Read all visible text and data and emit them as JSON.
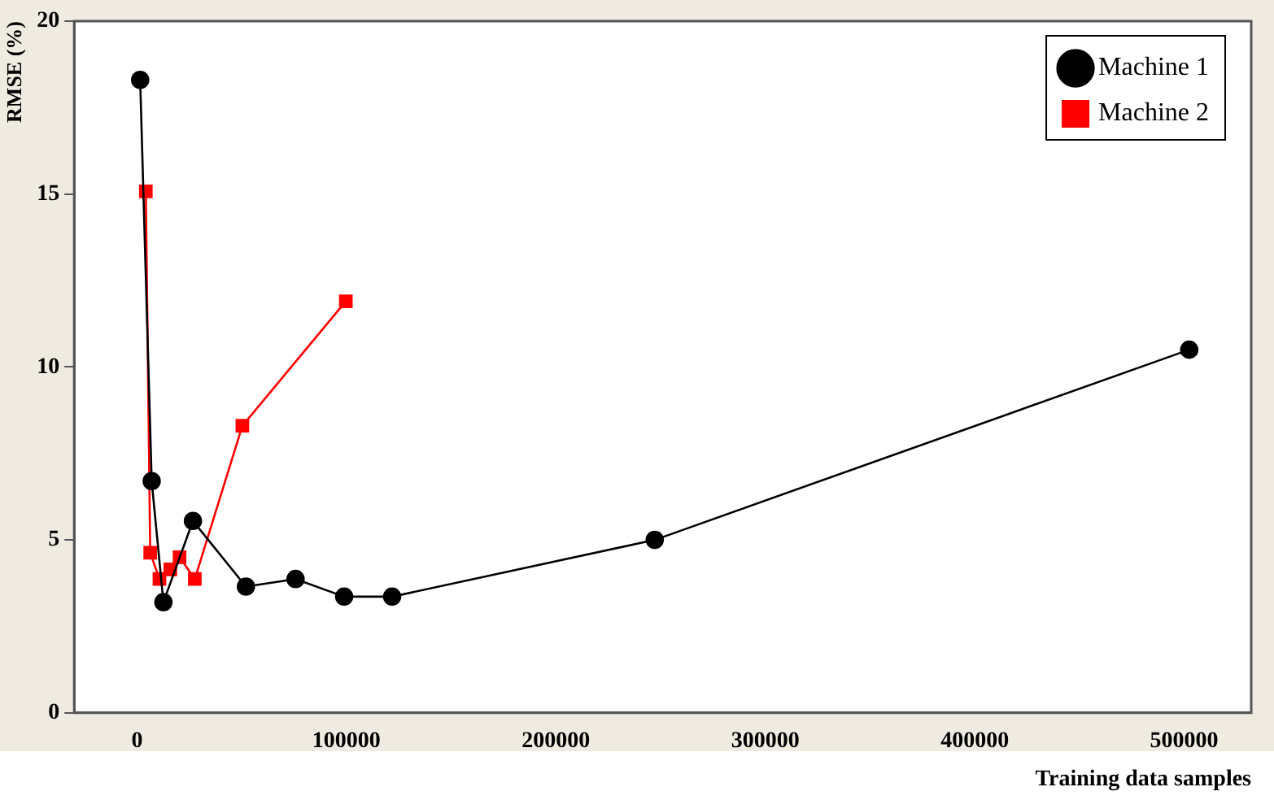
{
  "chart_data": {
    "type": "line",
    "xlabel": "Training data samples",
    "ylabel": "RMSE (%)",
    "xlim": [
      -30000,
      532000
    ],
    "xticks": [
      0,
      100000,
      200000,
      300000,
      400000,
      500000
    ],
    "ylim": [
      0,
      20
    ],
    "yticks": [
      0,
      5,
      10,
      15,
      20
    ],
    "grid": false,
    "legend": "top right",
    "series": [
      {
        "name": "Machine 1",
        "color": "#000000",
        "marker": "circle",
        "x": [
          1500,
          7000,
          12600,
          26700,
          52000,
          75700,
          98900,
          121800,
          247200,
          502400
        ],
        "values": [
          18.3,
          6.7,
          3.2,
          5.55,
          3.65,
          3.87,
          3.36,
          3.36,
          5.0,
          10.5
        ]
      },
      {
        "name": "Machine 2",
        "color": "#ff0000",
        "marker": "square",
        "x": [
          4200,
          6300,
          10700,
          15900,
          20300,
          27600,
          50300,
          99700
        ],
        "values": [
          15.08,
          4.63,
          3.87,
          4.15,
          4.5,
          3.87,
          8.3,
          11.9
        ]
      }
    ]
  }
}
